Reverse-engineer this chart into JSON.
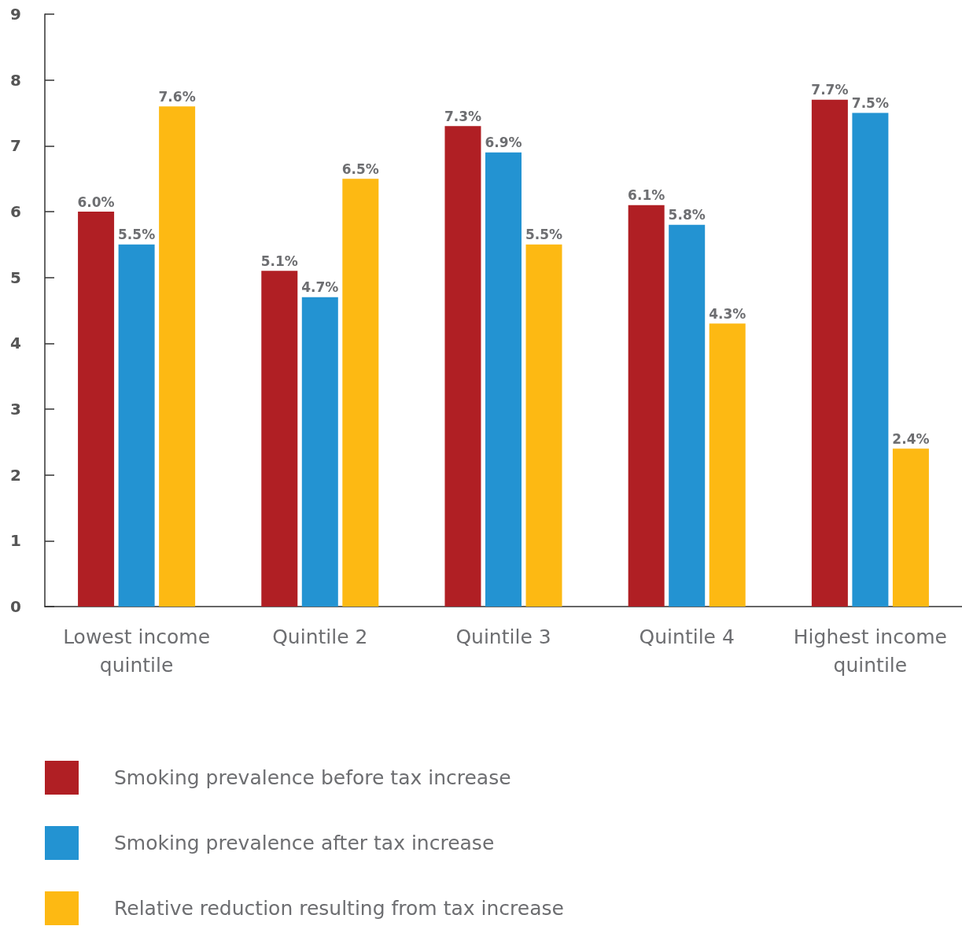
{
  "chart_data": {
    "type": "bar",
    "categories": [
      "Lowest income quintile",
      "Quintile 2",
      "Quintile 3",
      "Quintile 4",
      "Highest income quintile"
    ],
    "series": [
      {
        "name": "Smoking prevalence before tax increase",
        "color": "#b01f24",
        "values": [
          6.0,
          5.1,
          7.3,
          6.1,
          7.7
        ],
        "value_labels": [
          "6.0%",
          "5.1%",
          "7.3%",
          "6.1%",
          "7.7%"
        ]
      },
      {
        "name": "Smoking prevalence after tax increase",
        "color": "#2393d2",
        "values": [
          5.5,
          4.7,
          6.9,
          5.8,
          7.5
        ],
        "value_labels": [
          "5.5%",
          "4.7%",
          "6.9%",
          "5.8%",
          "7.5%"
        ]
      },
      {
        "name": "Relative reduction resulting from tax increase",
        "color": "#fdb913",
        "values": [
          7.6,
          6.5,
          5.5,
          4.3,
          2.4
        ],
        "value_labels": [
          "7.6%",
          "6.5%",
          "5.5%",
          "4.3%",
          "2.4%"
        ]
      }
    ],
    "ylim": [
      0,
      9
    ],
    "yticks": [
      0,
      1,
      2,
      3,
      4,
      5,
      6,
      7,
      8,
      9
    ],
    "grid": false,
    "legend": "bottom left"
  }
}
